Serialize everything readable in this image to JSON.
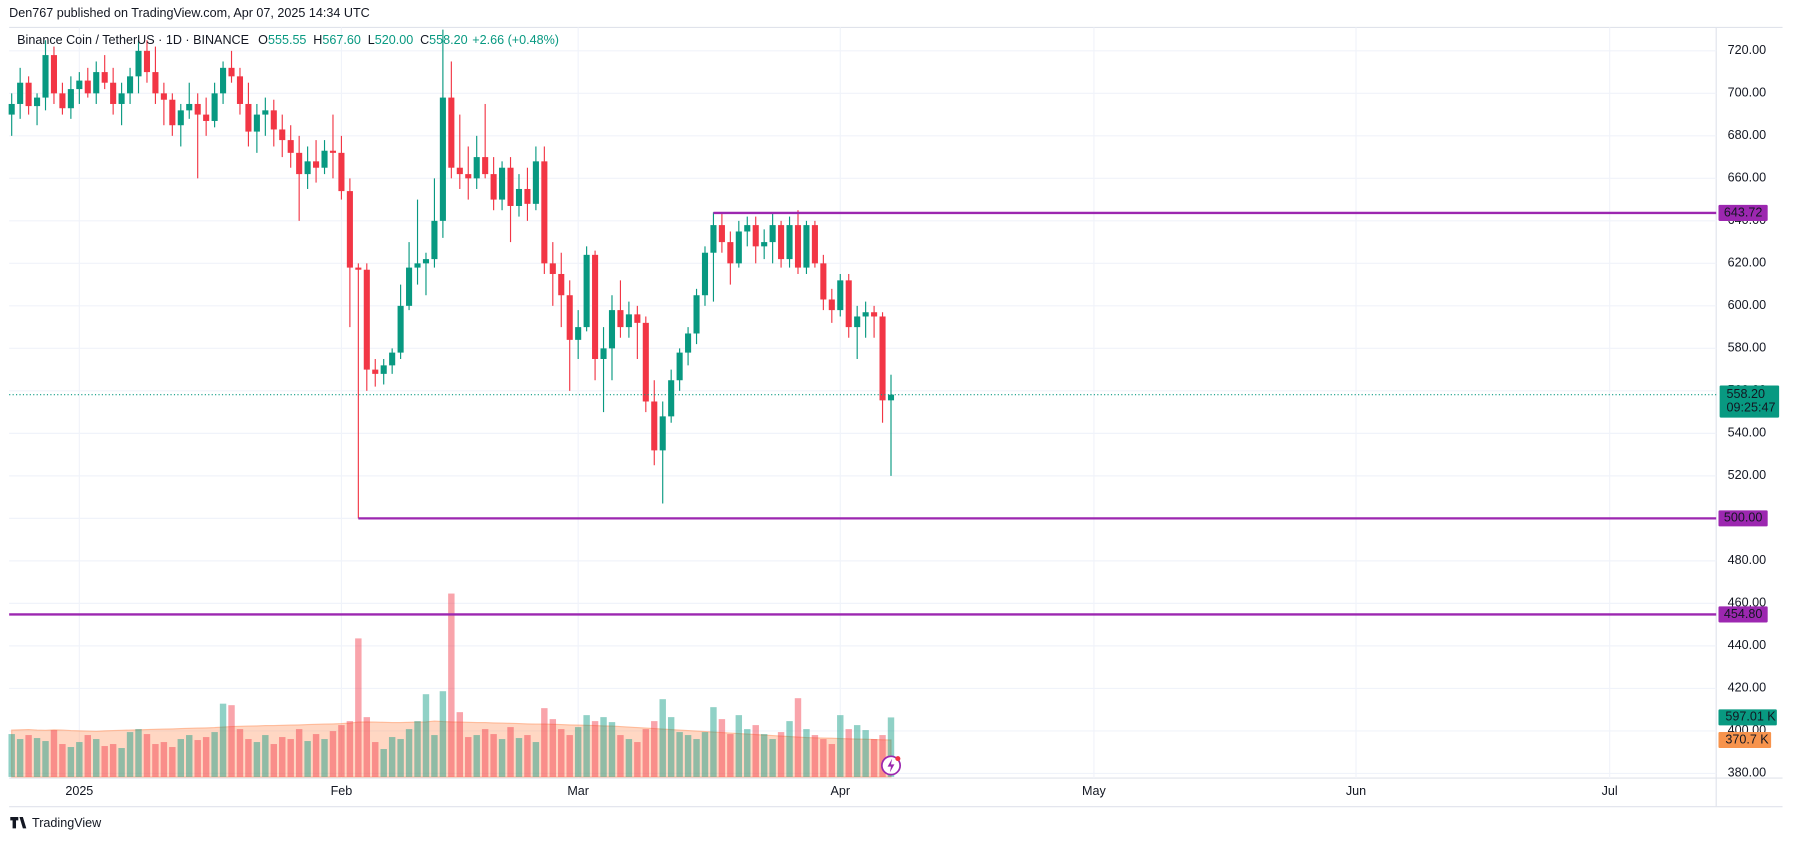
{
  "header": {
    "text": "Den767 published on TradingView.com, Apr 07, 2025 14:34 UTC"
  },
  "footer": {
    "brand": "TradingView"
  },
  "chart_data": {
    "type": "candlestick",
    "up_color": "#089981",
    "down_color": "#f23645",
    "legend": {
      "symbol": "Binance Coin / TetherUS · 1D · BINANCE",
      "items": [
        {
          "key": "O",
          "value": "555.55"
        },
        {
          "key": "H",
          "value": "567.60"
        },
        {
          "key": "L",
          "value": "520.00"
        },
        {
          "key": "C",
          "value": "558.20"
        }
      ],
      "change": "+2.66 (+0.48%)"
    },
    "xlim": [
      -0.3,
      201.6
    ],
    "xticks": [
      {
        "value": 8,
        "label": "2025"
      },
      {
        "value": 39,
        "label": "Feb"
      },
      {
        "value": 67,
        "label": "Mar"
      },
      {
        "value": 98,
        "label": "Apr"
      },
      {
        "value": 128,
        "label": "May"
      },
      {
        "value": 159,
        "label": "Jun"
      },
      {
        "value": 189,
        "label": "Jul"
      }
    ],
    "ylim": [
      377.8,
      731
    ],
    "yticks": [
      {
        "value": 380,
        "label": "380.00"
      },
      {
        "value": 400,
        "label": "400.00"
      },
      {
        "value": 420,
        "label": "420.00"
      },
      {
        "value": 440,
        "label": "440.00"
      },
      {
        "value": 460,
        "label": "460.00"
      },
      {
        "value": 480,
        "label": "480.00"
      },
      {
        "value": 500,
        "label": "500.00"
      },
      {
        "value": 520,
        "label": "520.00"
      },
      {
        "value": 540,
        "label": "540.00"
      },
      {
        "value": 560,
        "label": "560.00"
      },
      {
        "value": 580,
        "label": "580.00"
      },
      {
        "value": 600,
        "label": "600.00"
      },
      {
        "value": 620,
        "label": "620.00"
      },
      {
        "value": 640,
        "label": "640.00"
      },
      {
        "value": 660,
        "label": "660.00"
      },
      {
        "value": 680,
        "label": "680.00"
      },
      {
        "value": 700,
        "label": "700.00"
      },
      {
        "value": 720,
        "label": "720.00"
      }
    ],
    "grid": true,
    "open": [
      690,
      695,
      705,
      694,
      698,
      718,
      700,
      693,
      702,
      706,
      700,
      710,
      705,
      695,
      700,
      708,
      720,
      710,
      700,
      697,
      685,
      692,
      695,
      690,
      687,
      700,
      712,
      708,
      695,
      682,
      690,
      692,
      683,
      678,
      672,
      662,
      668,
      665,
      673,
      672,
      654,
      618,
      617,
      570,
      568,
      572,
      578,
      600,
      618,
      620,
      622,
      640,
      698,
      665,
      662,
      660,
      670,
      662,
      650,
      665,
      647,
      655,
      648,
      668,
      620,
      615,
      605,
      584,
      590,
      624,
      575,
      580,
      598,
      590,
      596,
      592,
      555,
      532,
      548,
      565,
      578,
      587,
      605,
      625,
      638,
      630,
      620,
      635,
      638,
      628,
      630,
      638,
      622,
      638,
      618,
      638,
      620,
      603,
      598,
      612,
      590,
      595,
      597,
      595,
      555.55
    ],
    "high": [
      700,
      712,
      708,
      700,
      725,
      722,
      705,
      708,
      710,
      712,
      715,
      718,
      712,
      705,
      712,
      725,
      725,
      722,
      705,
      700,
      695,
      705,
      700,
      698,
      705,
      715,
      720,
      712,
      705,
      695,
      698,
      697,
      690,
      685,
      680,
      675,
      678,
      678,
      690,
      680,
      660,
      620,
      620,
      575,
      575,
      580,
      610,
      630,
      650,
      625,
      660,
      730,
      715,
      690,
      675,
      680,
      695,
      670,
      668,
      670,
      662,
      665,
      675,
      675,
      630,
      625,
      612,
      598,
      628,
      626,
      590,
      605,
      612,
      602,
      600,
      595,
      565,
      555,
      570,
      580,
      590,
      608,
      628,
      644,
      644,
      635,
      640,
      642,
      642,
      636,
      644,
      640,
      642,
      645,
      640,
      640,
      624,
      608,
      615,
      615,
      600,
      602,
      600,
      597,
      567.6
    ],
    "low": [
      680,
      688,
      690,
      685,
      692,
      695,
      690,
      688,
      695,
      698,
      695,
      702,
      690,
      685,
      695,
      700,
      705,
      695,
      685,
      680,
      675,
      688,
      660,
      680,
      684,
      695,
      705,
      690,
      675,
      672,
      680,
      675,
      670,
      665,
      640,
      655,
      658,
      662,
      660,
      650,
      590,
      500,
      560,
      562,
      563,
      568,
      575,
      598,
      610,
      605,
      618,
      632,
      660,
      655,
      650,
      655,
      660,
      645,
      645,
      630,
      642,
      640,
      645,
      615,
      600,
      590,
      560,
      575,
      588,
      565,
      550,
      565,
      585,
      585,
      575,
      550,
      525,
      507,
      545,
      560,
      572,
      582,
      600,
      602,
      625,
      610,
      618,
      628,
      620,
      622,
      620,
      618,
      618,
      615,
      615,
      618,
      598,
      592,
      595,
      585,
      575,
      585,
      585,
      545,
      520
    ],
    "close": [
      695,
      705,
      694,
      698,
      718,
      700,
      693,
      702,
      706,
      700,
      710,
      705,
      695,
      700,
      708,
      720,
      710,
      700,
      697,
      685,
      692,
      695,
      690,
      687,
      700,
      712,
      708,
      695,
      682,
      690,
      692,
      683,
      678,
      672,
      662,
      668,
      665,
      673,
      672,
      654,
      618,
      617,
      570,
      568,
      572,
      578,
      600,
      618,
      620,
      622,
      640,
      698,
      665,
      662,
      660,
      670,
      662,
      650,
      665,
      647,
      655,
      648,
      668,
      620,
      615,
      605,
      584,
      590,
      624,
      575,
      580,
      598,
      590,
      596,
      592,
      555,
      532,
      548,
      565,
      578,
      587,
      605,
      625,
      638,
      630,
      620,
      635,
      638,
      628,
      630,
      638,
      622,
      638,
      618,
      638,
      620,
      603,
      598,
      612,
      590,
      595,
      597,
      595,
      555.54,
      558.2
    ],
    "last_price": {
      "value": 558.2,
      "label": "558.20",
      "countdown": "09:25:47"
    },
    "hlines": [
      {
        "value": 643.72,
        "label": "643.72",
        "start": 83,
        "color": "#9c27b0"
      },
      {
        "value": 500,
        "label": "500.00",
        "start": 41,
        "color": "#9c27b0"
      },
      {
        "value": 454.8,
        "label": "454.80",
        "color": "#9c27b0"
      }
    ],
    "volume": {
      "values": [
        430,
        380,
        420,
        390,
        360,
        470,
        330,
        300,
        350,
        420,
        380,
        310,
        330,
        290,
        450,
        480,
        430,
        330,
        350,
        300,
        380,
        420,
        370,
        400,
        450,
        735,
        720,
        480,
        380,
        350,
        420,
        330,
        400,
        380,
        480,
        360,
        430,
        380,
        460,
        520,
        560,
        1390,
        600,
        350,
        280,
        400,
        380,
        480,
        560,
        830,
        420,
        860,
        1840,
        650,
        400,
        420,
        480,
        430,
        380,
        500,
        390,
        420,
        350,
        690,
        580,
        480,
        420,
        500,
        620,
        560,
        600,
        550,
        420,
        380,
        350,
        480,
        560,
        780,
        600,
        450,
        420,
        380,
        450,
        700,
        580,
        430,
        620,
        480,
        520,
        430,
        380,
        450,
        560,
        790,
        480,
        420,
        380,
        330,
        620,
        480,
        520,
        470,
        380,
        420,
        597.01
      ],
      "last_label": "597.01 K",
      "ma": [
        470,
        472,
        475,
        470,
        468,
        472,
        470,
        465,
        462,
        460,
        458,
        462,
        465,
        468,
        470,
        472,
        475,
        478,
        480,
        482,
        485,
        488,
        490,
        492,
        495,
        500,
        505,
        508,
        510,
        512,
        515,
        515,
        518,
        520,
        522,
        525,
        528,
        530,
        532,
        535,
        540,
        550,
        552,
        550,
        548,
        545,
        545,
        548,
        550,
        552,
        560,
        555,
        552,
        550,
        548,
        545,
        545,
        542,
        540,
        538,
        535,
        532,
        530,
        530,
        528,
        525,
        522,
        520,
        518,
        515,
        512,
        510,
        505,
        500,
        495,
        490,
        485,
        480,
        475,
        470,
        465,
        460,
        455,
        450,
        445,
        440,
        435,
        430,
        425,
        420,
        415,
        410,
        405,
        400,
        395,
        392,
        390,
        388,
        385,
        382,
        380,
        378,
        375,
        372,
        370.7
      ],
      "ma_last_label": "370.7 K",
      "ma_color": "#ff9b6a"
    }
  }
}
